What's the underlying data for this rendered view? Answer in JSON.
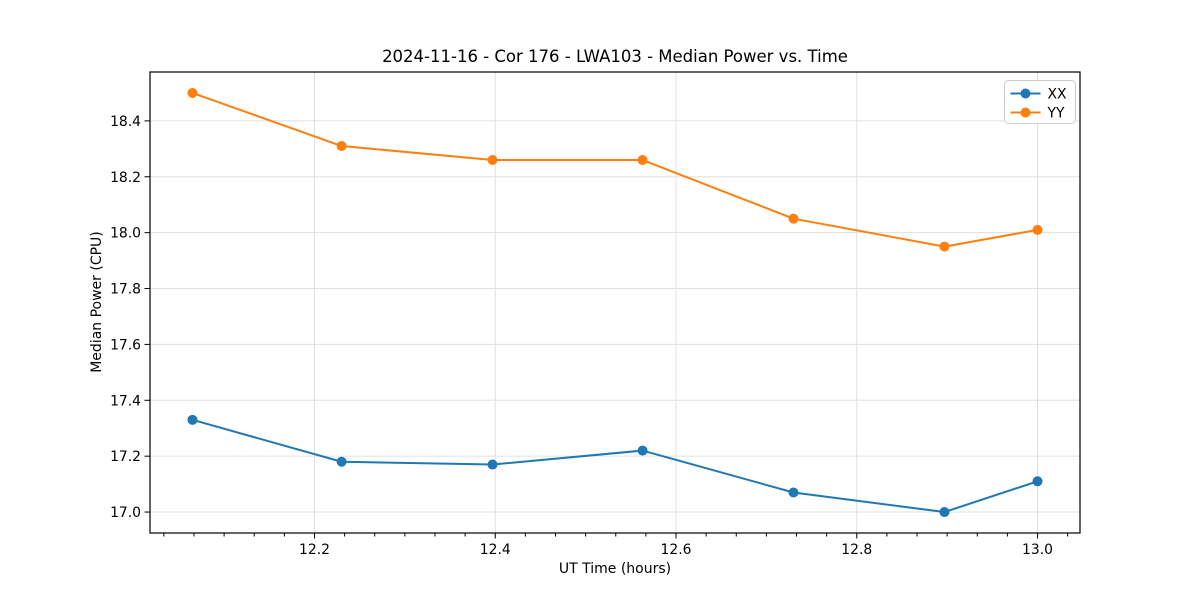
{
  "figure": {
    "background": "#ffffff"
  },
  "chart_data": {
    "type": "line",
    "title": "2024-11-16 - Cor 176 - LWA103 - Median Power vs. Time",
    "xlabel": "UT Time (hours)",
    "ylabel": "Median Power (CPU)",
    "x": [
      12.065,
      12.23,
      12.397,
      12.563,
      12.73,
      12.897,
      13.0
    ],
    "series": [
      {
        "name": "XX",
        "color": "#1f77b4",
        "values": [
          17.33,
          17.18,
          17.17,
          17.22,
          17.07,
          17.0,
          17.11
        ]
      },
      {
        "name": "YY",
        "color": "#ff7f0e",
        "values": [
          18.5,
          18.31,
          18.26,
          18.26,
          18.05,
          17.95,
          18.01
        ]
      }
    ],
    "xlim": [
      12.018,
      13.047
    ],
    "ylim": [
      16.925,
      18.575
    ],
    "xticks": [
      12.2,
      12.4,
      12.6,
      12.8,
      13.0
    ],
    "xtick_labels": [
      "12.2",
      "12.4",
      "12.6",
      "12.8",
      "13.0"
    ],
    "yticks": [
      17.0,
      17.2,
      17.4,
      17.6,
      17.8,
      18.0,
      18.2,
      18.4
    ],
    "ytick_labels": [
      "17.0",
      "17.2",
      "17.4",
      "17.6",
      "17.8",
      "18.0",
      "18.2",
      "18.4"
    ],
    "grid": true,
    "grid_color": "#e0e0e0",
    "spine_color": "#000000",
    "x_minor_subdivisions": 6,
    "legend_position": "upper right",
    "legend_border_color": "#cccccc",
    "marker": "circle",
    "line_width": 2,
    "marker_radius": 5
  }
}
